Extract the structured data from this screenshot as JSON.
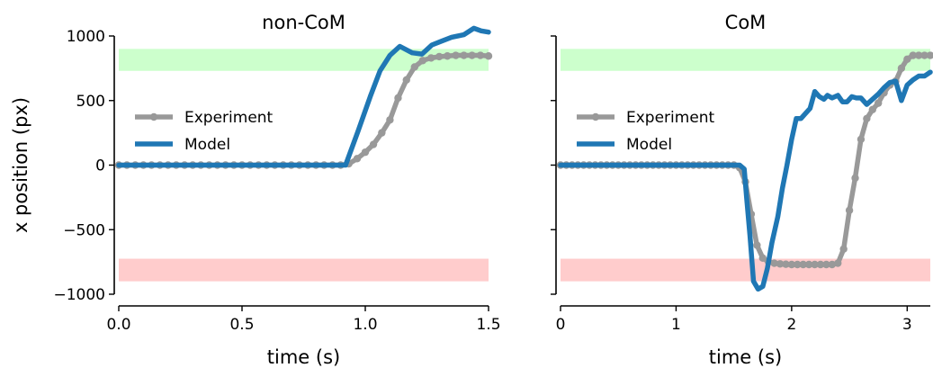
{
  "chart_data": [
    {
      "type": "line",
      "title": "non-CoM",
      "xlabel": "time (s)",
      "ylabel": "x position (px)",
      "xlim": [
        0,
        1.5
      ],
      "ylim": [
        -1000,
        1000
      ],
      "xticks": [
        0.0,
        0.5,
        1.0,
        1.5
      ],
      "xtick_labels": [
        "0.0",
        "0.5",
        "1.0",
        "1.5"
      ],
      "yticks": [
        1000,
        500,
        0,
        -500,
        -1000
      ],
      "ytick_labels": [
        "1000",
        "500",
        "0",
        "−500",
        "−1000"
      ],
      "bands": [
        {
          "name": "",
          "y0": 730,
          "y1": 900,
          "color": "#ccffcc"
        },
        {
          "name": "",
          "y0": -900,
          "y1": -725,
          "color": "#ffcccc"
        }
      ],
      "legend_position": "center-left",
      "series": [
        {
          "name": "Experiment",
          "color": "#999999",
          "markers": true,
          "x": [
            0,
            0.033,
            0.067,
            0.1,
            0.133,
            0.167,
            0.2,
            0.233,
            0.267,
            0.3,
            0.333,
            0.367,
            0.4,
            0.433,
            0.467,
            0.5,
            0.533,
            0.567,
            0.6,
            0.633,
            0.667,
            0.7,
            0.733,
            0.767,
            0.8,
            0.833,
            0.867,
            0.9,
            0.933,
            0.967,
            1.0,
            1.033,
            1.067,
            1.1,
            1.133,
            1.167,
            1.2,
            1.233,
            1.267,
            1.3,
            1.333,
            1.367,
            1.4,
            1.433,
            1.467,
            1.5
          ],
          "y": [
            0,
            0,
            0,
            0,
            0,
            0,
            0,
            0,
            0,
            0,
            0,
            0,
            0,
            0,
            0,
            0,
            0,
            0,
            0,
            0,
            0,
            0,
            0,
            0,
            0,
            0,
            0,
            0,
            10,
            50,
            100,
            160,
            250,
            350,
            520,
            660,
            760,
            810,
            830,
            840,
            845,
            850,
            850,
            850,
            850,
            845
          ]
        },
        {
          "name": "Model",
          "color": "#1f77b4",
          "markers": false,
          "x": [
            0,
            0.92,
            0.97,
            1.02,
            1.06,
            1.1,
            1.14,
            1.19,
            1.23,
            1.27,
            1.31,
            1.35,
            1.4,
            1.44,
            1.47,
            1.5
          ],
          "y": [
            0,
            0,
            260,
            530,
            730,
            850,
            920,
            870,
            860,
            930,
            960,
            990,
            1010,
            1060,
            1040,
            1030
          ]
        }
      ]
    },
    {
      "type": "line",
      "title": "CoM",
      "xlabel": "time (s)",
      "ylabel": "",
      "xlim": [
        0,
        3.2
      ],
      "ylim": [
        -1000,
        1000
      ],
      "xticks": [
        0,
        1,
        2,
        3
      ],
      "xtick_labels": [
        "0",
        "1",
        "2",
        "3"
      ],
      "yticks": [
        1000,
        500,
        0,
        -500,
        -1000
      ],
      "ytick_labels": [
        "",
        "",
        "",
        "",
        ""
      ],
      "bands": [
        {
          "name": "",
          "y0": 730,
          "y1": 900,
          "color": "#ccffcc"
        },
        {
          "name": "",
          "y0": -900,
          "y1": -725,
          "color": "#ffcccc"
        }
      ],
      "legend_position": "center-left",
      "series": [
        {
          "name": "Experiment",
          "color": "#999999",
          "markers": true,
          "x": [
            0,
            0.05,
            0.1,
            0.15,
            0.2,
            0.25,
            0.3,
            0.35,
            0.4,
            0.45,
            0.5,
            0.55,
            0.6,
            0.65,
            0.7,
            0.75,
            0.8,
            0.85,
            0.9,
            0.95,
            1.0,
            1.05,
            1.1,
            1.15,
            1.2,
            1.25,
            1.3,
            1.35,
            1.4,
            1.45,
            1.5,
            1.55,
            1.6,
            1.65,
            1.7,
            1.75,
            1.8,
            1.85,
            1.9,
            1.95,
            2.0,
            2.05,
            2.1,
            2.15,
            2.2,
            2.25,
            2.3,
            2.35,
            2.4,
            2.45,
            2.5,
            2.55,
            2.6,
            2.65,
            2.7,
            2.75,
            2.8,
            2.85,
            2.9,
            2.95,
            3.0,
            3.05,
            3.1,
            3.15,
            3.2
          ],
          "y": [
            0,
            0,
            0,
            0,
            0,
            0,
            0,
            0,
            0,
            0,
            0,
            0,
            0,
            0,
            0,
            0,
            0,
            0,
            0,
            0,
            0,
            0,
            0,
            0,
            0,
            0,
            0,
            0,
            0,
            0,
            0,
            -20,
            -130,
            -380,
            -620,
            -720,
            -750,
            -760,
            -765,
            -768,
            -770,
            -770,
            -770,
            -770,
            -770,
            -770,
            -770,
            -770,
            -760,
            -650,
            -350,
            -100,
            200,
            360,
            430,
            480,
            560,
            620,
            650,
            750,
            820,
            850,
            850,
            850,
            850
          ]
        },
        {
          "name": "Model",
          "color": "#1f77b4",
          "markers": false,
          "x": [
            0,
            1.55,
            1.59,
            1.61,
            1.64,
            1.67,
            1.71,
            1.75,
            1.79,
            1.83,
            1.88,
            1.92,
            1.96,
            2.0,
            2.04,
            2.08,
            2.12,
            2.16,
            2.2,
            2.24,
            2.28,
            2.31,
            2.35,
            2.4,
            2.44,
            2.48,
            2.52,
            2.56,
            2.6,
            2.65,
            2.7,
            2.75,
            2.8,
            2.85,
            2.9,
            2.95,
            3.0,
            3.05,
            3.1,
            3.15,
            3.2
          ],
          "y": [
            0,
            0,
            -30,
            -250,
            -550,
            -900,
            -960,
            -940,
            -800,
            -600,
            -400,
            -180,
            0,
            200,
            360,
            360,
            400,
            440,
            570,
            530,
            510,
            540,
            520,
            540,
            490,
            490,
            530,
            520,
            520,
            470,
            510,
            550,
            600,
            640,
            650,
            500,
            620,
            660,
            690,
            690,
            720
          ]
        }
      ]
    }
  ]
}
